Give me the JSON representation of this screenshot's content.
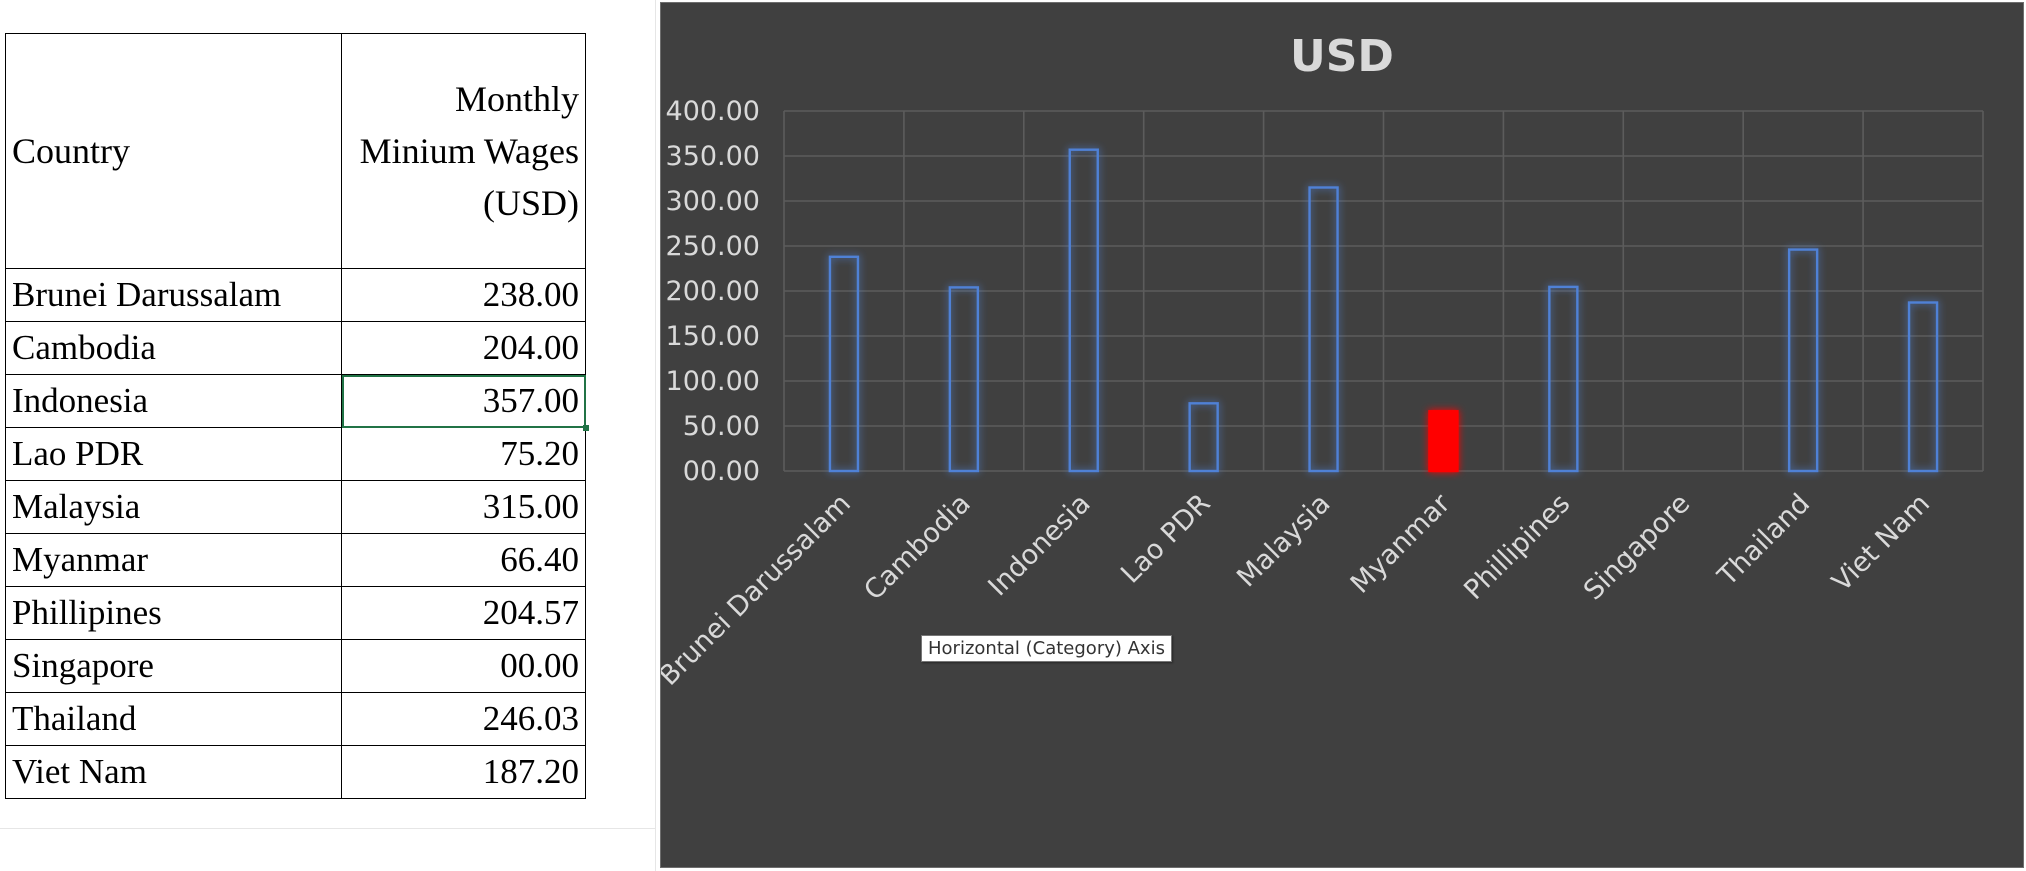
{
  "table": {
    "headers": [
      "Country",
      "Monthly Minium Wages (USD)"
    ],
    "rows": [
      {
        "country": "Brunei Darussalam",
        "wage": "238.00"
      },
      {
        "country": "Cambodia",
        "wage": "204.00"
      },
      {
        "country": "Indonesia",
        "wage": "357.00"
      },
      {
        "country": "Lao PDR",
        "wage": "75.20"
      },
      {
        "country": "Malaysia",
        "wage": "315.00"
      },
      {
        "country": "Myanmar",
        "wage": "66.40"
      },
      {
        "country": "Phillipines",
        "wage": "204.57"
      },
      {
        "country": "Singapore",
        "wage": "00.00"
      },
      {
        "country": "Thailand",
        "wage": "246.03"
      },
      {
        "country": "Viet Nam",
        "wage": "187.20"
      }
    ],
    "selected_row": 2
  },
  "tooltip": {
    "text": "Horizontal (Category) Axis"
  },
  "colors": {
    "chart_background": "#404040",
    "bar_outline": "#4f81d6",
    "highlight_bar": "#ff0000",
    "text": "#d9d9d9",
    "selection": "#217346"
  },
  "chart_data": {
    "type": "bar",
    "title": "USD",
    "categories": [
      "Brunei Darussalam",
      "Cambodia",
      "Indonesia",
      "Lao PDR",
      "Malaysia",
      "Myanmar",
      "Phillipines",
      "Singapore",
      "Thailand",
      "Viet Nam"
    ],
    "series": [
      {
        "values": [
          238.0,
          204.0,
          357.0,
          75.2,
          315.0,
          66.4,
          204.57,
          0.0,
          246.03,
          187.2
        ]
      }
    ],
    "highlight_index": 5,
    "ylim": [
      0,
      400
    ],
    "yticks": [
      0,
      50,
      100,
      150,
      200,
      250,
      300,
      350,
      400
    ],
    "ytick_labels": [
      "00.00",
      "50.00",
      "100.00",
      "150.00",
      "200.00",
      "250.00",
      "300.00",
      "350.00",
      "400.00"
    ],
    "xlabel": "",
    "ylabel": "",
    "grid": true,
    "legend": "none",
    "bar_style": "outline-glow"
  }
}
